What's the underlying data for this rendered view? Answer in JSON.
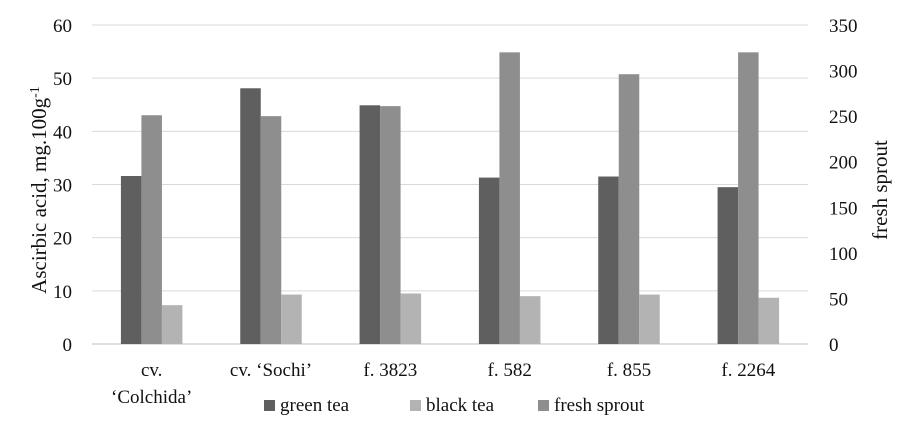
{
  "chart_data": {
    "type": "bar",
    "categories": [
      [
        "cv.",
        "‘Colchida’"
      ],
      [
        "cv. ‘Sochi’"
      ],
      [
        "f. 3823"
      ],
      [
        "f.  582"
      ],
      [
        "f. 855"
      ],
      [
        "f.  2264"
      ]
    ],
    "series": [
      {
        "name": "green tea",
        "axis": "left",
        "color": "#5f5f5f",
        "values": [
          31.6,
          48.1,
          44.9,
          31.3,
          31.5,
          29.5
        ]
      },
      {
        "name": "fresh sprout",
        "axis": "right",
        "color": "#8e8e8e",
        "values": [
          251,
          250,
          261,
          320,
          296,
          320
        ]
      },
      {
        "name": "black tea",
        "axis": "left",
        "color": "#b3b3b3",
        "values": [
          7.3,
          9.3,
          9.5,
          9.0,
          9.3,
          8.7
        ]
      }
    ],
    "legend_order": [
      "green tea",
      "black tea",
      "fresh sprout"
    ],
    "legend_position": "bottom",
    "ylabel": "Ascirbic acid, mg.100g",
    "ylabel_sup": "-1",
    "y2label": "fresh sprout",
    "ylim": [
      0,
      60
    ],
    "y2lim": [
      0,
      350
    ],
    "yticks": [
      "0",
      "10",
      "20",
      "30",
      "40",
      "50",
      "60"
    ],
    "y2ticks": [
      "0",
      "50",
      "100",
      "150",
      "200",
      "250",
      "300",
      "350"
    ],
    "grid": true
  }
}
